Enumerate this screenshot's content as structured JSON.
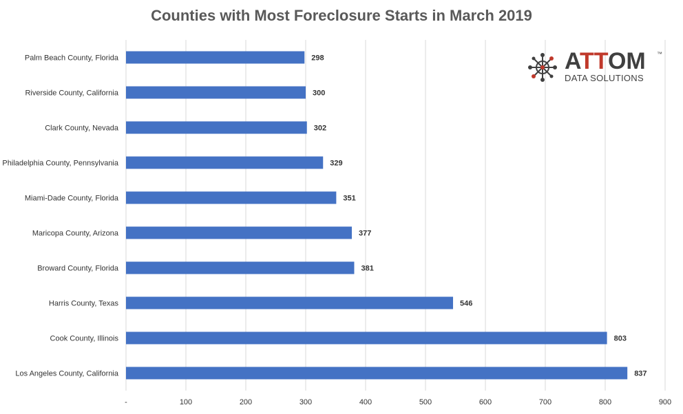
{
  "chart_data": {
    "type": "bar",
    "orientation": "horizontal",
    "title": "Counties with Most Foreclosure Starts in March 2019",
    "categories": [
      "Palm Beach County, Florida",
      "Riverside County, California",
      "Clark County, Nevada",
      "Philadelphia County, Pennsylvania",
      "Miami-Dade County, Florida",
      "Maricopa County, Arizona",
      "Broward County, Florida",
      "Harris County, Texas",
      "Cook County, Illinois",
      "Los Angeles County, California"
    ],
    "values": [
      298,
      300,
      302,
      329,
      351,
      377,
      381,
      546,
      803,
      837
    ],
    "value_labels": [
      "298",
      "300",
      "302",
      "329",
      "351",
      "377",
      "381",
      "546",
      "803",
      "837"
    ],
    "xlim": [
      0,
      900
    ],
    "xticks": [
      0,
      100,
      200,
      300,
      400,
      500,
      600,
      700,
      800,
      900
    ],
    "xtick_labels": [
      "-",
      "100",
      "200",
      "300",
      "400",
      "500",
      "600",
      "700",
      "800",
      "900"
    ],
    "xlabel": "",
    "ylabel": "",
    "grid": "vertical",
    "bar_color": "#4472c4"
  },
  "logo": {
    "brand_prefix": "A",
    "brand_accent": "TT",
    "brand_suffix": "OM",
    "trademark": "™",
    "tagline": "DATA SOLUTIONS",
    "accent_color": "#c0392b"
  }
}
